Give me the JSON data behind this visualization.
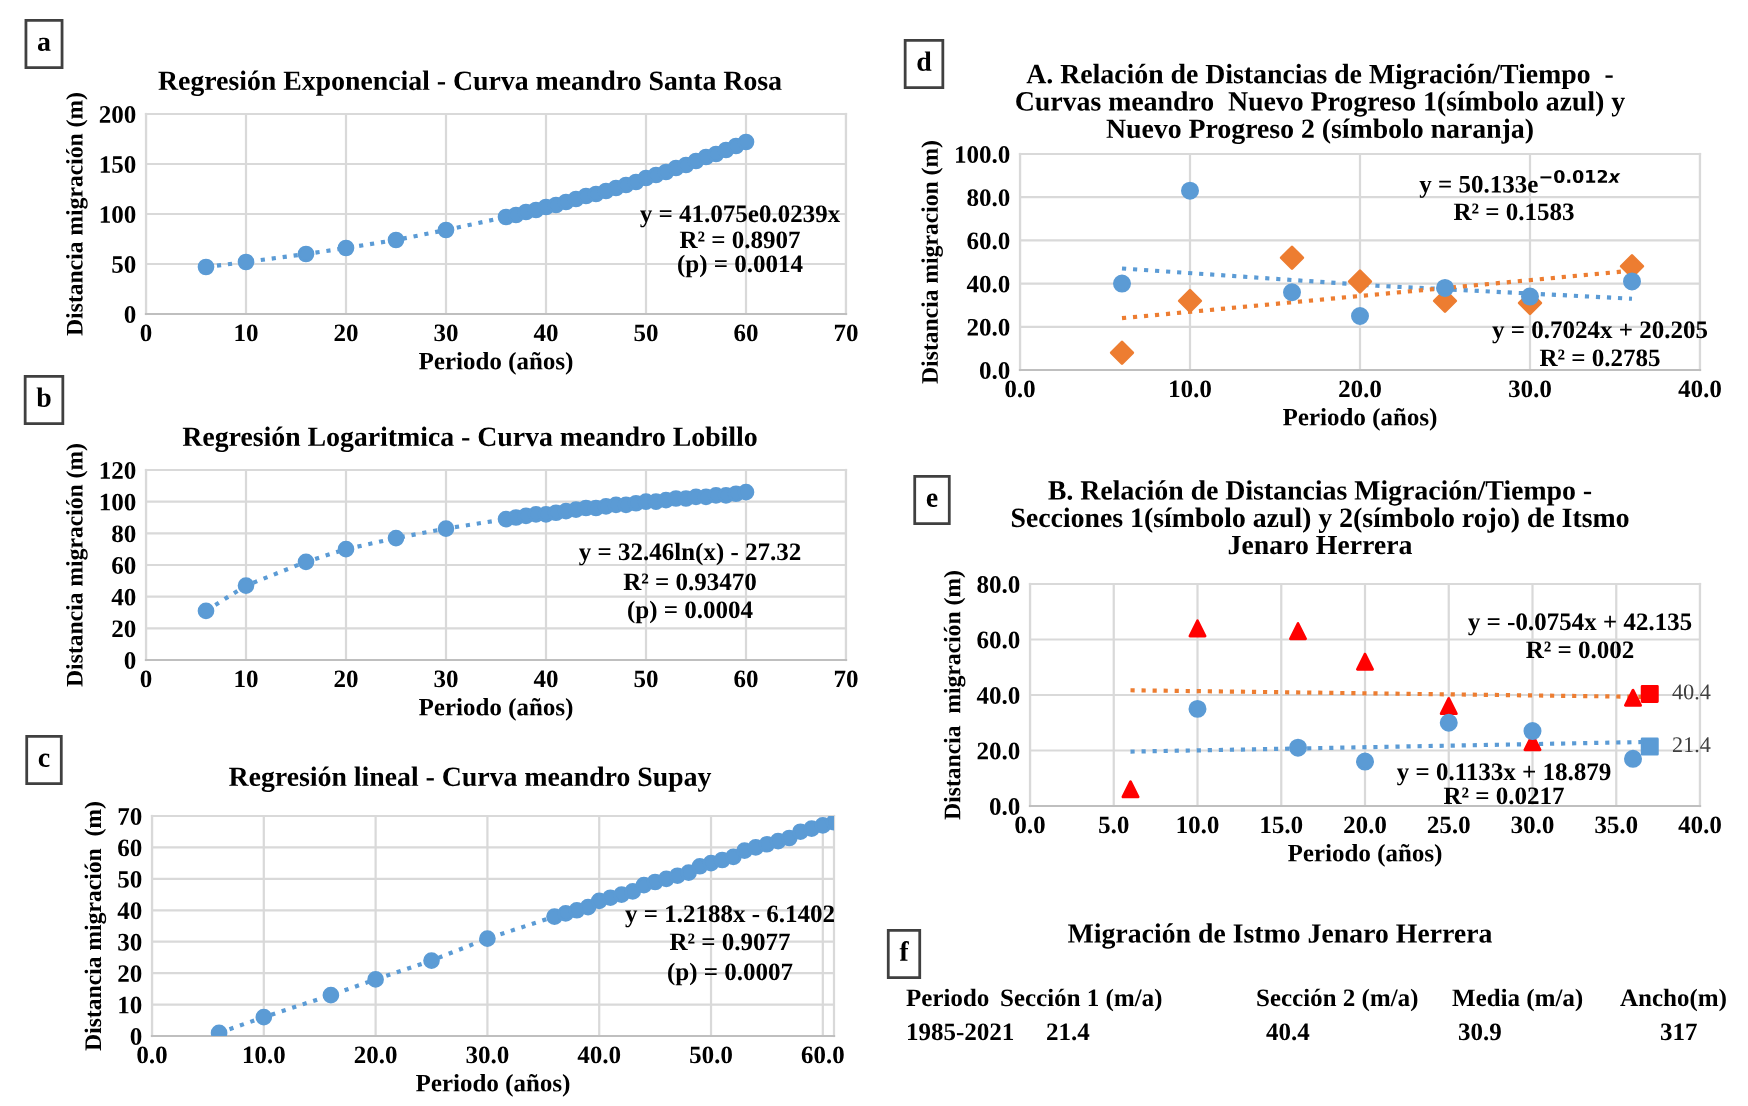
{
  "chart_data": [
    {
      "type": "line",
      "title": "Regresión Exponencial - Curva meandro Santa Rosa",
      "xlabel": "Periodo (años)",
      "ylabel": "Distancia migración (m)",
      "xlim": [
        0,
        70
      ],
      "ylim": [
        0,
        200
      ],
      "xticks": [
        0,
        10,
        20,
        30,
        40,
        50,
        60,
        70
      ],
      "yticks": [
        0,
        50,
        100,
        150,
        200
      ],
      "grid": true,
      "legend": false,
      "annotations": [
        "a",
        "y = 41.075e0.0239x",
        "R² = 0.8907",
        "(p) = 0.0014"
      ],
      "series": [
        {
          "color": "#5b9bd5",
          "marker": "circle",
          "line_style": "dotted",
          "x": [
            6,
            10,
            16,
            20,
            25,
            30,
            36,
            37,
            38,
            39,
            40,
            41,
            42,
            43,
            44,
            45,
            46,
            47,
            48,
            49,
            50,
            51,
            52,
            53,
            54,
            55,
            56,
            57,
            58,
            59,
            60
          ],
          "values": [
            47,
            52,
            60,
            66,
            74,
            84,
            97,
            99,
            102,
            104,
            107,
            109,
            112,
            115,
            118,
            120,
            123,
            126,
            129,
            132,
            136,
            139,
            142,
            146,
            149,
            153,
            157,
            160,
            164,
            168,
            172
          ]
        }
      ]
    },
    {
      "type": "line",
      "title": "Regresión Logaritmica - Curva meandro Lobillo",
      "xlabel": "Periodo (años)",
      "ylabel": "Distancia migración (m)",
      "xlim": [
        0,
        70
      ],
      "ylim": [
        0,
        120
      ],
      "xticks": [
        0,
        10,
        20,
        30,
        40,
        50,
        60,
        70
      ],
      "yticks": [
        0,
        20,
        40,
        60,
        80,
        100,
        120
      ],
      "grid": true,
      "legend": false,
      "annotations": [
        "b",
        "y = 32.46ln(x) - 27.32",
        "R² = 0.93470",
        "(p) = 0.0004"
      ],
      "series": [
        {
          "color": "#5b9bd5",
          "marker": "circle",
          "line_style": "dotted",
          "x": [
            6,
            10,
            16,
            20,
            25,
            30,
            36,
            37,
            38,
            39,
            40,
            41,
            42,
            43,
            44,
            45,
            46,
            47,
            48,
            49,
            50,
            51,
            52,
            53,
            54,
            55,
            56,
            57,
            58,
            59,
            60
          ],
          "values": [
            31,
            47,
            62,
            70,
            77,
            83,
            89,
            90,
            91,
            92,
            92,
            93,
            94,
            95,
            96,
            96,
            97,
            98,
            98,
            99,
            100,
            100,
            101,
            102,
            102,
            103,
            103,
            104,
            104,
            105,
            106
          ]
        }
      ]
    },
    {
      "type": "line",
      "title": "Regresión lineal - Curva meandro Supay",
      "xlabel": "Periodo (años)",
      "ylabel": "Distancia migración  (m)",
      "xlim": [
        0,
        61
      ],
      "ylim": [
        0,
        70
      ],
      "xticks": [
        {
          "value": 0,
          "label": "0.0"
        },
        {
          "value": 10,
          "label": "10.0"
        },
        {
          "value": 20,
          "label": "20.0"
        },
        {
          "value": 30,
          "label": "30.0"
        },
        {
          "value": 40,
          "label": "40.0"
        },
        {
          "value": 50,
          "label": "50.0"
        },
        {
          "value": 60,
          "label": "60.0"
        }
      ],
      "yticks": [
        0,
        10,
        20,
        30,
        40,
        50,
        60,
        70
      ],
      "grid": true,
      "legend": false,
      "annotations": [
        "c",
        "y = 1.2188x - 6.1402",
        "R² = 0.9077",
        "(p) = 0.0007"
      ],
      "series": [
        {
          "color": "#5b9bd5",
          "marker": "circle",
          "line_style": "dotted",
          "x": [
            6,
            10,
            16,
            20,
            25,
            30,
            36,
            37,
            38,
            39,
            40,
            41,
            42,
            43,
            44,
            45,
            46,
            47,
            48,
            49,
            50,
            51,
            52,
            53,
            54,
            55,
            56,
            57,
            58,
            59,
            60,
            61
          ],
          "values": [
            1,
            6,
            13,
            18,
            24,
            31,
            38,
            39,
            40,
            41,
            43,
            44,
            45,
            46,
            48,
            49,
            50,
            51,
            52,
            54,
            55,
            56,
            57,
            59,
            60,
            61,
            62,
            63,
            65,
            66,
            67,
            68
          ]
        }
      ]
    },
    {
      "type": "scatter",
      "title": "A. Relación de Distancias de Migración/Tiempo  - Curvas meandro  Nuevo Progreso 1(símbolo azul) y Nuevo Progreso 2 (símbolo naranja)",
      "xlabel": "Periodo (años)",
      "ylabel": "Distancia migracion (m)",
      "xlim": [
        0,
        40
      ],
      "ylim": [
        0,
        100
      ],
      "xticks": [
        {
          "value": 0,
          "label": "0.0"
        },
        {
          "value": 10,
          "label": "10.0"
        },
        {
          "value": 20,
          "label": "20.0"
        },
        {
          "value": 30,
          "label": "30.0"
        },
        {
          "value": 40,
          "label": "40.0"
        }
      ],
      "yticks": [
        {
          "value": 0,
          "label": "0.0"
        },
        {
          "value": 20,
          "label": "20.0"
        },
        {
          "value": 40,
          "label": "40.0"
        },
        {
          "value": 60,
          "label": "60.0"
        },
        {
          "value": 80,
          "label": "80.0"
        },
        {
          "value": 100,
          "label": "100.0"
        }
      ],
      "grid": true,
      "legend": false,
      "annotations": [
        "d",
        "y = 50.133e$^{−0.012x}$",
        "R² = 0.1583",
        "y = 0.7024x + 20.205",
        "R² = 0.2785"
      ],
      "series": [
        {
          "type": "scatter",
          "color": "#5b9bd5",
          "marker": "circle",
          "x": [
            6,
            10,
            16,
            20,
            25,
            30,
            36
          ],
          "values": [
            40,
            83,
            36,
            25,
            38,
            34,
            41
          ]
        },
        {
          "type": "scatter",
          "color": "#ed7d31",
          "marker": "diamond",
          "x": [
            6,
            10,
            16,
            20,
            25,
            30,
            36
          ],
          "values": [
            8,
            32,
            52,
            41,
            32,
            31,
            48
          ]
        },
        {
          "type": "line",
          "color": "#5b9bd5",
          "marker": "none",
          "line_style": "dotted",
          "x": [
            6,
            21,
            36
          ],
          "values": [
            47,
            39,
            33
          ]
        },
        {
          "type": "line",
          "color": "#ed7d31",
          "marker": "none",
          "line_style": "dotted",
          "x": [
            6,
            36
          ],
          "values": [
            24,
            46
          ]
        }
      ]
    },
    {
      "type": "scatter",
      "title": "B. Relación de Distancias Migración/Tiempo - Secciones 1(símbolo azul) y 2(símbolo rojo) de Itsmo Jenaro Herrera",
      "xlabel": "Periodo (años)",
      "ylabel": "Distancia  migración (m)",
      "xlim": [
        0,
        40
      ],
      "ylim": [
        0,
        80
      ],
      "xticks": [
        {
          "value": 0,
          "label": "0.0"
        },
        {
          "value": 5,
          "label": "5.0"
        },
        {
          "value": 10,
          "label": "10.0"
        },
        {
          "value": 15,
          "label": "15.0"
        },
        {
          "value": 20,
          "label": "20.0"
        },
        {
          "value": 25,
          "label": "25.0"
        },
        {
          "value": 30,
          "label": "30.0"
        },
        {
          "value": 35,
          "label": "35.0"
        },
        {
          "value": 40,
          "label": "40.0"
        }
      ],
      "yticks": [
        {
          "value": 0,
          "label": "0.0"
        },
        {
          "value": 20,
          "label": "20.0"
        },
        {
          "value": 40,
          "label": "40.0"
        },
        {
          "value": 60,
          "label": "60.0"
        },
        {
          "value": 80,
          "label": "80.0"
        }
      ],
      "grid": true,
      "legend": false,
      "annotations": [
        "e",
        "y = -0.0754x + 42.135",
        "R² = 0.002",
        "y = 0.1133x + 18.879",
        "R² = 0.0217"
      ],
      "series": [
        {
          "type": "line",
          "color": "#ed7d31",
          "marker": "none",
          "line_style": "dotted",
          "x": [
            6,
            37
          ],
          "values": [
            41.7,
            39.3
          ]
        },
        {
          "type": "line",
          "color": "#5b9bd5",
          "marker": "none",
          "line_style": "dotted",
          "x": [
            6,
            37
          ],
          "values": [
            19.6,
            23.1
          ]
        },
        {
          "type": "scatter",
          "color": "#5b9bd5",
          "marker": "circle",
          "x": [
            10,
            16,
            20,
            25,
            30,
            36
          ],
          "values": [
            35,
            21,
            16,
            30,
            27,
            17
          ]
        },
        {
          "type": "scatter",
          "color": "#ff0000",
          "marker": "triangle",
          "x": [
            6,
            10,
            16,
            20,
            25,
            30,
            36
          ],
          "values": [
            6,
            64,
            63,
            52,
            36,
            23,
            39
          ]
        },
        {
          "type": "scatter",
          "color": "#5b9bd5",
          "marker": "square",
          "x": [
            37
          ],
          "values": [
            21.4
          ],
          "value_labels": [
            "21.4"
          ]
        },
        {
          "type": "scatter",
          "color": "#ff0000",
          "marker": "square",
          "x": [
            37
          ],
          "values": [
            40.4
          ],
          "value_labels": [
            "40.4"
          ]
        }
      ]
    },
    {
      "type": "other",
      "title": "Migración de Istmo Jenaro Herrera",
      "annotations": [
        "f",
        "Periodo",
        "Sección 1 (m/a)",
        "Sección 2 (m/a)",
        "Media (m/a)",
        "Ancho(m)",
        "1985-2021",
        "21.4",
        "40.4",
        "30.9",
        "317"
      ]
    }
  ]
}
